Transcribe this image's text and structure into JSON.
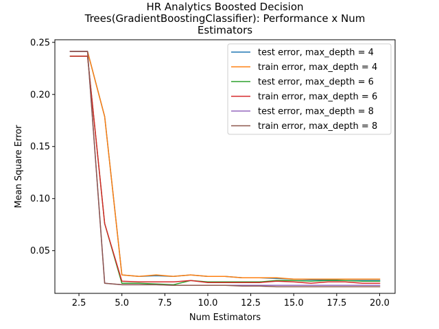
{
  "chart_data": {
    "type": "line",
    "title_lines": [
      "HR Analytics Boosted Decision",
      "Trees(GradientBoostingClassifier): Performance x Num",
      "Estimators"
    ],
    "xlabel": "Num Estimators",
    "ylabel": "Mean Square Error",
    "xlim": [
      1.1,
      20.9
    ],
    "ylim": [
      0.009,
      0.2525
    ],
    "xticks": [
      2.5,
      5.0,
      7.5,
      10.0,
      12.5,
      15.0,
      17.5,
      20.0
    ],
    "xtick_labels": [
      "2.5",
      "5.0",
      "7.5",
      "10.0",
      "12.5",
      "15.0",
      "17.5",
      "20.0"
    ],
    "yticks": [
      0.05,
      0.1,
      0.15,
      0.2,
      0.25
    ],
    "ytick_labels": [
      "0.05",
      "0.10",
      "0.15",
      "0.20",
      "0.25"
    ],
    "legend_position": "top-right",
    "x": [
      2,
      3,
      4,
      5,
      6,
      7,
      8,
      9,
      10,
      11,
      12,
      13,
      14,
      15,
      16,
      17,
      18,
      19,
      20
    ],
    "series": [
      {
        "name": "test error, max_depth = 4",
        "color": "#1f77b4",
        "values": [
          0.2413,
          0.2413,
          0.1787,
          0.0267,
          0.0253,
          0.026,
          0.0253,
          0.0267,
          0.0253,
          0.0253,
          0.024,
          0.024,
          0.0233,
          0.0227,
          0.022,
          0.022,
          0.0213,
          0.0213,
          0.0213
        ]
      },
      {
        "name": "train error, max_depth = 4",
        "color": "#ff7f0e",
        "values": [
          0.2413,
          0.2413,
          0.1787,
          0.0267,
          0.0253,
          0.0267,
          0.0253,
          0.0267,
          0.0253,
          0.0253,
          0.024,
          0.024,
          0.024,
          0.0227,
          0.0227,
          0.0227,
          0.0227,
          0.0227,
          0.0227
        ]
      },
      {
        "name": "test error, max_depth = 6",
        "color": "#2ca02c",
        "values": [
          0.2367,
          0.2367,
          0.076,
          0.0187,
          0.0187,
          0.018,
          0.0173,
          0.0213,
          0.02,
          0.02,
          0.02,
          0.02,
          0.0213,
          0.0213,
          0.0207,
          0.0213,
          0.0213,
          0.0207,
          0.0207
        ]
      },
      {
        "name": "train error, max_depth = 6",
        "color": "#d62728",
        "values": [
          0.2367,
          0.2367,
          0.076,
          0.0207,
          0.02,
          0.02,
          0.02,
          0.0213,
          0.0193,
          0.0193,
          0.0193,
          0.0193,
          0.0207,
          0.02,
          0.0187,
          0.02,
          0.02,
          0.0187,
          0.0187
        ]
      },
      {
        "name": "test error, max_depth = 8",
        "color": "#9467bd",
        "values": [
          0.2413,
          0.2413,
          0.0187,
          0.0173,
          0.0173,
          0.0173,
          0.0167,
          0.0167,
          0.0167,
          0.0167,
          0.0167,
          0.0167,
          0.0167,
          0.0167,
          0.0167,
          0.0167,
          0.0167,
          0.0167,
          0.0167
        ]
      },
      {
        "name": "train error, max_depth = 8",
        "color": "#8c564b",
        "values": [
          0.2413,
          0.2413,
          0.0187,
          0.0173,
          0.0173,
          0.0173,
          0.0167,
          0.0167,
          0.0167,
          0.0167,
          0.016,
          0.016,
          0.0153,
          0.0153,
          0.0153,
          0.0153,
          0.0153,
          0.0153,
          0.0153
        ]
      }
    ]
  }
}
